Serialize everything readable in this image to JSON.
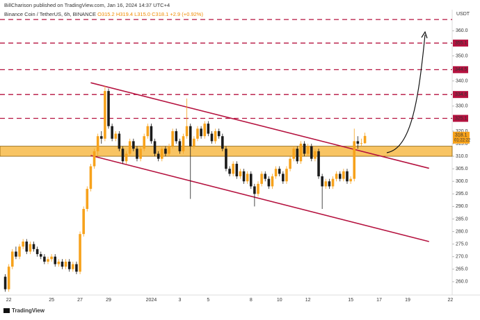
{
  "header": {
    "published": "BillCharison published on TradingView.com, Jan 16, 2024 14:37 UTC+4",
    "symbol": "Binance Coin / TetherUS, 6h, BINANCE",
    "open": "O315.2",
    "high": "H319.4",
    "low": "L315.0",
    "close": "C318.1",
    "change": "+2.9 (+0.92%)"
  },
  "footer": "TradingView",
  "chart_data": {
    "type": "candlestick",
    "currency": "USDT",
    "countdown": "01:22:22",
    "up_color": "#f7a21b",
    "down_color": "#1b1b1b",
    "categories": [
      null,
      "22",
      null,
      null,
      null,
      null,
      null,
      null,
      null,
      null,
      null,
      null,
      null,
      "25",
      null,
      null,
      null,
      null,
      null,
      null,
      null,
      "27",
      null,
      null,
      null,
      null,
      null,
      null,
      null,
      "29",
      null,
      null,
      null,
      null,
      null,
      null,
      null,
      null,
      null,
      null,
      null,
      "2024",
      null,
      null,
      null,
      null,
      null,
      null,
      null,
      "3",
      null,
      null,
      null,
      null,
      null,
      null,
      null,
      "5",
      null,
      null,
      null,
      null,
      null,
      null,
      null,
      null,
      null,
      null,
      null,
      "8",
      null,
      null,
      null,
      null,
      null,
      null,
      null,
      "10",
      null,
      null,
      null,
      null,
      null,
      null,
      null,
      "12",
      null,
      null,
      null,
      null,
      null,
      null,
      null,
      null,
      null,
      null,
      null,
      "15",
      null,
      null,
      null,
      null,
      null,
      null,
      null,
      "17",
      null,
      null,
      null,
      null,
      null,
      null,
      null,
      "19",
      null,
      null,
      null,
      null,
      null,
      null,
      null,
      null,
      null,
      null,
      null,
      "22"
    ],
    "open": [
      262,
      257,
      266,
      272,
      270,
      274,
      276,
      272,
      275,
      273,
      271,
      270,
      268,
      269,
      270,
      267,
      268,
      266,
      268,
      265,
      267,
      264,
      279,
      289,
      297,
      306,
      312,
      318,
      317,
      336,
      322,
      317,
      319,
      313,
      308,
      311,
      316,
      313,
      309,
      313,
      318,
      322,
      316,
      311,
      309,
      313,
      311,
      314,
      320,
      316,
      312,
      318,
      322,
      314,
      317,
      321,
      318,
      323,
      319,
      316,
      320,
      318,
      313,
      305,
      303,
      307,
      302,
      304,
      300,
      303,
      298,
      295,
      299,
      303,
      301,
      298,
      302,
      305,
      303,
      300,
      305,
      309,
      313,
      308,
      315,
      311,
      314,
      309,
      312,
      302,
      298,
      300,
      298,
      301,
      303,
      301,
      304,
      300,
      301,
      316,
      315,
      315.2,
      null,
      null,
      null,
      null,
      null,
      null,
      null,
      null,
      null,
      null,
      null,
      null,
      null,
      null,
      null,
      null,
      null,
      null,
      null,
      null,
      null,
      null,
      null,
      null
    ],
    "high": [
      263,
      267,
      273,
      274,
      275,
      277,
      277,
      276,
      276,
      274,
      272,
      271,
      270,
      271,
      271,
      269,
      269,
      269,
      269,
      268,
      268,
      280,
      290,
      298,
      307,
      313,
      319,
      320,
      338,
      337,
      323,
      320,
      320,
      314,
      312,
      317,
      317,
      314,
      314,
      319,
      323,
      323,
      317,
      312,
      314,
      314,
      315,
      321,
      321,
      317,
      319,
      333,
      323,
      318,
      322,
      322,
      324,
      324,
      320,
      321,
      321,
      319,
      314,
      306,
      308,
      308,
      305,
      305,
      304,
      304,
      299,
      300,
      304,
      304,
      302,
      303,
      306,
      306,
      304,
      306,
      310,
      314,
      314,
      316,
      316,
      315,
      315,
      313,
      313,
      303,
      301,
      301,
      302,
      304,
      304,
      305,
      305,
      302,
      321,
      318,
      317,
      319.4,
      null,
      null,
      null,
      null,
      null,
      null,
      null,
      null,
      null,
      null,
      null,
      null,
      null,
      null,
      null,
      null,
      null,
      null,
      null,
      null,
      null,
      null,
      null,
      null
    ],
    "low": [
      256,
      256,
      265,
      269,
      269,
      273,
      271,
      271,
      272,
      270,
      269,
      267,
      267,
      268,
      266,
      266,
      265,
      265,
      264,
      264,
      263,
      263,
      278,
      288,
      296,
      305,
      310,
      315,
      316,
      321,
      316,
      316,
      312,
      307,
      307,
      310,
      312,
      308,
      308,
      312,
      317,
      315,
      310,
      308,
      308,
      310,
      310,
      313,
      315,
      311,
      311,
      317,
      293,
      313,
      316,
      317,
      317,
      318,
      315,
      315,
      317,
      312,
      304,
      302,
      302,
      301,
      301,
      299,
      299,
      297,
      290,
      294,
      298,
      300,
      297,
      297,
      301,
      302,
      299,
      299,
      304,
      308,
      307,
      307,
      310,
      310,
      308,
      308,
      301,
      289,
      297,
      297,
      297,
      300,
      300,
      300,
      299,
      299,
      300,
      313,
      314,
      315,
      null,
      null,
      null,
      null,
      null,
      null,
      null,
      null,
      null,
      null,
      null,
      null,
      null,
      null,
      null,
      null,
      null,
      null,
      null,
      null,
      null,
      null,
      null,
      null
    ],
    "close": [
      257,
      266,
      272,
      270,
      274,
      276,
      272,
      275,
      273,
      271,
      270,
      268,
      269,
      270,
      267,
      268,
      266,
      268,
      265,
      267,
      264,
      279,
      289,
      297,
      306,
      312,
      318,
      317,
      336,
      322,
      317,
      319,
      313,
      308,
      311,
      316,
      313,
      309,
      313,
      318,
      322,
      316,
      311,
      309,
      313,
      311,
      314,
      320,
      316,
      312,
      318,
      322,
      314,
      317,
      321,
      318,
      323,
      319,
      316,
      320,
      318,
      313,
      305,
      303,
      307,
      302,
      304,
      300,
      303,
      298,
      295,
      299,
      303,
      301,
      298,
      302,
      305,
      303,
      300,
      305,
      309,
      313,
      308,
      315,
      311,
      314,
      309,
      312,
      302,
      298,
      300,
      298,
      301,
      303,
      301,
      304,
      300,
      301,
      316,
      315,
      315.2,
      318.1,
      null,
      null,
      null,
      null,
      null,
      null,
      null,
      null,
      null,
      null,
      null,
      null,
      null,
      null,
      null,
      null,
      null,
      null,
      null,
      null,
      null,
      null,
      null,
      null
    ],
    "ylim": [
      254.7,
      368.4
    ],
    "yticks": [
      {
        "value": 260,
        "label": "260.0"
      },
      {
        "value": 265,
        "label": "265.0"
      },
      {
        "value": 270,
        "label": "270.0"
      },
      {
        "value": 275,
        "label": "275.0"
      },
      {
        "value": 280,
        "label": "280.0"
      },
      {
        "value": 285,
        "label": "285.0"
      },
      {
        "value": 290,
        "label": "290.0"
      },
      {
        "value": 295,
        "label": "295.0"
      },
      {
        "value": 300,
        "label": "300.0"
      },
      {
        "value": 305,
        "label": "305.0"
      },
      {
        "value": 310,
        "label": "310.0"
      },
      {
        "value": 315,
        "label": "315.0"
      },
      {
        "value": 320,
        "label": "320.0"
      },
      {
        "value": 325,
        "label": "325.0"
      },
      {
        "value": 330,
        "label": "330.0"
      },
      {
        "value": 335,
        "label": "335.0"
      },
      {
        "value": 340,
        "label": "340.0"
      },
      {
        "value": 345,
        "label": "345.0"
      },
      {
        "value": 350,
        "label": "350.0"
      },
      {
        "value": 355,
        "label": "355.0"
      },
      {
        "value": 360,
        "label": "360.0"
      }
    ],
    "levels": [
      325.1,
      334.6,
      344.5,
      355.1
    ],
    "top_level_line": 364.5,
    "level_color": "#b5123f",
    "zone": [
      310,
      314
    ],
    "zone_color": "#f8c463",
    "trendlines": [
      {
        "x": [
          24,
          119
        ],
        "y": [
          339.3,
          305.2
        ]
      },
      {
        "x": [
          24,
          119
        ],
        "y": [
          310.3,
          276
        ]
      }
    ]
  }
}
